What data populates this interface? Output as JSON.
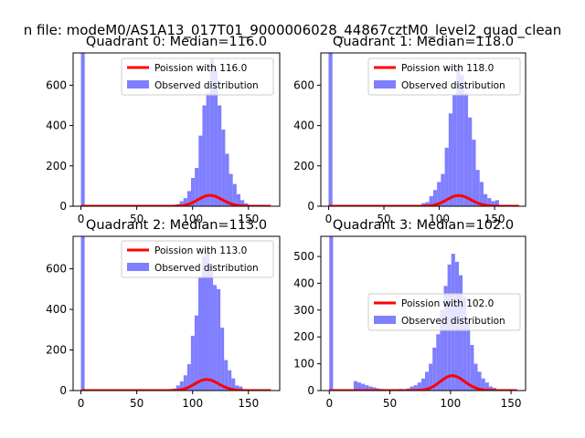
{
  "figure": {
    "suptitle": "n file: modeM0/AS1A13_017T01_9000006028_44867cztM0_level2_quad_clean"
  },
  "chart_data": [
    {
      "type": "bar",
      "title": "Quadrant 0: Median=116.0",
      "xlim": [
        -7,
        178
      ],
      "ylim": [
        0,
        760
      ],
      "xticks": [
        0,
        50,
        100,
        150
      ],
      "yticks": [
        0,
        200,
        400,
        600
      ],
      "legend": {
        "position": "top-right",
        "entries": [
          "Poission with 116.0",
          "Observed distribution"
        ]
      },
      "colors": {
        "histogram": "#7f7fff",
        "poisson": "#ff0000"
      },
      "histogram": {
        "name": "Observed distribution",
        "bin_width": 3.4,
        "x": [
          0,
          85,
          88.4,
          91.8,
          95.2,
          98.6,
          102,
          105.4,
          108.8,
          112.2,
          115.6,
          119,
          122.4,
          125.8,
          129.2,
          132.6,
          136,
          139.4,
          142.8,
          146.2
        ],
        "values": [
          760,
          10,
          25,
          40,
          75,
          140,
          190,
          350,
          500,
          560,
          730,
          680,
          500,
          380,
          260,
          160,
          110,
          60,
          30,
          15
        ]
      },
      "poisson": {
        "name": "Poission with 116.0",
        "lambda": 116,
        "scale": 1450,
        "x_range": [
          0,
          170
        ]
      }
    },
    {
      "type": "bar",
      "title": "Quadrant 1: Median=118.0",
      "xlim": [
        -7,
        178
      ],
      "ylim": [
        0,
        760
      ],
      "xticks": [
        0,
        50,
        100,
        150
      ],
      "yticks": [
        0,
        200,
        400,
        600
      ],
      "legend": {
        "position": "top-right",
        "entries": [
          "Poission with 118.0",
          "Observed distribution"
        ]
      },
      "colors": {
        "histogram": "#7f7fff",
        "poisson": "#ff0000"
      },
      "histogram": {
        "name": "Observed distribution",
        "bin_width": 3.5,
        "x": [
          0,
          84,
          87.5,
          91,
          94.5,
          98,
          101.5,
          105,
          108.5,
          112,
          115.5,
          119,
          122.5,
          126,
          129.5,
          133,
          136.5,
          140,
          143.5,
          147,
          150.5
        ],
        "values": [
          760,
          15,
          20,
          50,
          80,
          120,
          160,
          290,
          460,
          550,
          690,
          650,
          560,
          440,
          330,
          180,
          120,
          60,
          40,
          25,
          30
        ]
      },
      "poisson": {
        "name": "Poission with 118.0",
        "lambda": 118,
        "scale": 1450,
        "x_range": [
          0,
          172
        ]
      }
    },
    {
      "type": "bar",
      "title": "Quadrant 2: Median=113.0",
      "xlim": [
        -7,
        178
      ],
      "ylim": [
        0,
        760
      ],
      "xticks": [
        0,
        50,
        100,
        150
      ],
      "yticks": [
        0,
        200,
        400,
        600
      ],
      "legend": {
        "position": "top-right",
        "entries": [
          "Poission with 113.0",
          "Observed distribution"
        ]
      },
      "colors": {
        "histogram": "#7f7fff",
        "poisson": "#ff0000"
      },
      "histogram": {
        "name": "Observed distribution",
        "bin_width": 3.3,
        "x": [
          0,
          82,
          85.3,
          88.6,
          91.9,
          95.2,
          98.5,
          101.8,
          105.1,
          108.4,
          111.7,
          115,
          118.3,
          121.6,
          124.9,
          128.2,
          131.5,
          134.8,
          138.1,
          141.4
        ],
        "values": [
          760,
          10,
          25,
          45,
          75,
          130,
          270,
          370,
          560,
          660,
          700,
          620,
          520,
          500,
          310,
          150,
          100,
          60,
          25,
          20
        ]
      },
      "poisson": {
        "name": "Poission with 113.0",
        "lambda": 113,
        "scale": 1450,
        "x_range": [
          0,
          170
        ]
      }
    },
    {
      "type": "bar",
      "title": "Quadrant 3: Median=102.0",
      "xlim": [
        -7,
        162
      ],
      "ylim": [
        0,
        575
      ],
      "xticks": [
        0,
        50,
        100,
        150
      ],
      "yticks": [
        0,
        100,
        200,
        300,
        400,
        500
      ],
      "legend": {
        "position": "center-right",
        "entries": [
          "Poission with 102.0",
          "Observed distribution"
        ]
      },
      "colors": {
        "histogram": "#7f7fff",
        "poisson": "#ff0000"
      },
      "histogram": {
        "name": "Observed distribution",
        "bin_width": 3.1,
        "x": [
          0,
          17,
          20.1,
          23.2,
          26.3,
          29.4,
          32.5,
          35.6,
          38.7,
          41.8,
          44.9,
          48,
          51.1,
          54.2,
          57.3,
          60.4,
          63.5,
          66.6,
          69.7,
          72.8,
          75.9,
          79,
          82.1,
          85.2,
          88.3,
          91.4,
          94.5,
          97.6,
          100.7,
          103.8,
          106.9,
          110,
          113.1,
          116.2,
          119.3,
          122.4,
          125.5,
          128.6,
          131.7,
          134.8,
          137.9
        ],
        "values": [
          575,
          5,
          35,
          30,
          25,
          20,
          15,
          12,
          8,
          6,
          5,
          4,
          3,
          5,
          6,
          5,
          8,
          15,
          20,
          30,
          45,
          70,
          100,
          160,
          210,
          300,
          390,
          470,
          510,
          480,
          430,
          350,
          260,
          170,
          100,
          70,
          45,
          30,
          15,
          10,
          5
        ]
      },
      "poisson": {
        "name": "Poission with 102.0",
        "lambda": 102,
        "scale": 1400,
        "x_range": [
          0,
          155
        ]
      }
    }
  ]
}
